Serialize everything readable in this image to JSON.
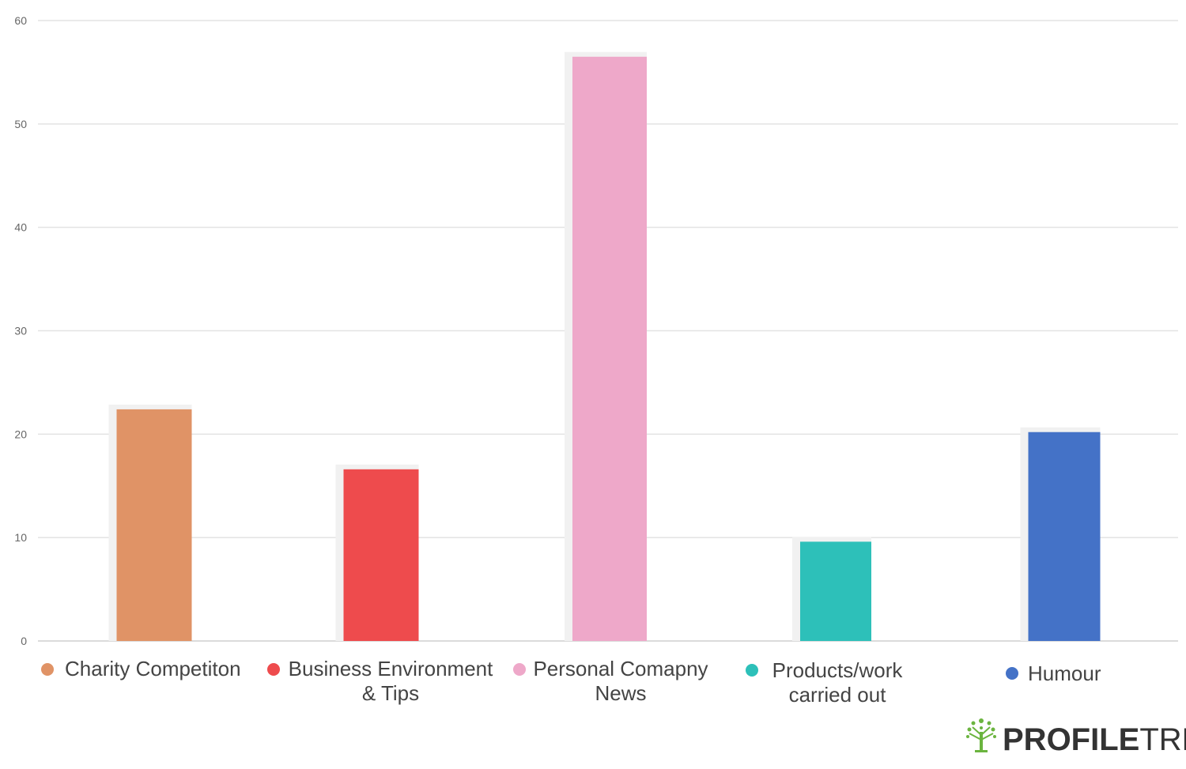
{
  "chart_data": {
    "type": "bar",
    "categories": [
      [
        "Charity Competiton"
      ],
      [
        "Business Environment",
        "& Tips"
      ],
      [
        "Personal Comapny",
        "News"
      ],
      [
        "Products/work",
        "carried out"
      ],
      [
        "Humour"
      ]
    ],
    "values": [
      22.4,
      16.6,
      56.5,
      9.6,
      20.2
    ],
    "colors": [
      "#E09366",
      "#EE4B4D",
      "#EEA8C9",
      "#2DC0B9",
      "#4472C7"
    ],
    "ylim": [
      0,
      60
    ],
    "yticks": [
      0,
      10,
      20,
      30,
      40,
      50,
      60
    ],
    "grid": true,
    "legend_position": "bottom",
    "title": "",
    "xlabel": "",
    "ylabel": ""
  },
  "branding": {
    "logo_bold": "PROFILE",
    "logo_light": "TREE",
    "logo_icon": "tree-icon",
    "logo_color": "#6BB43F"
  }
}
